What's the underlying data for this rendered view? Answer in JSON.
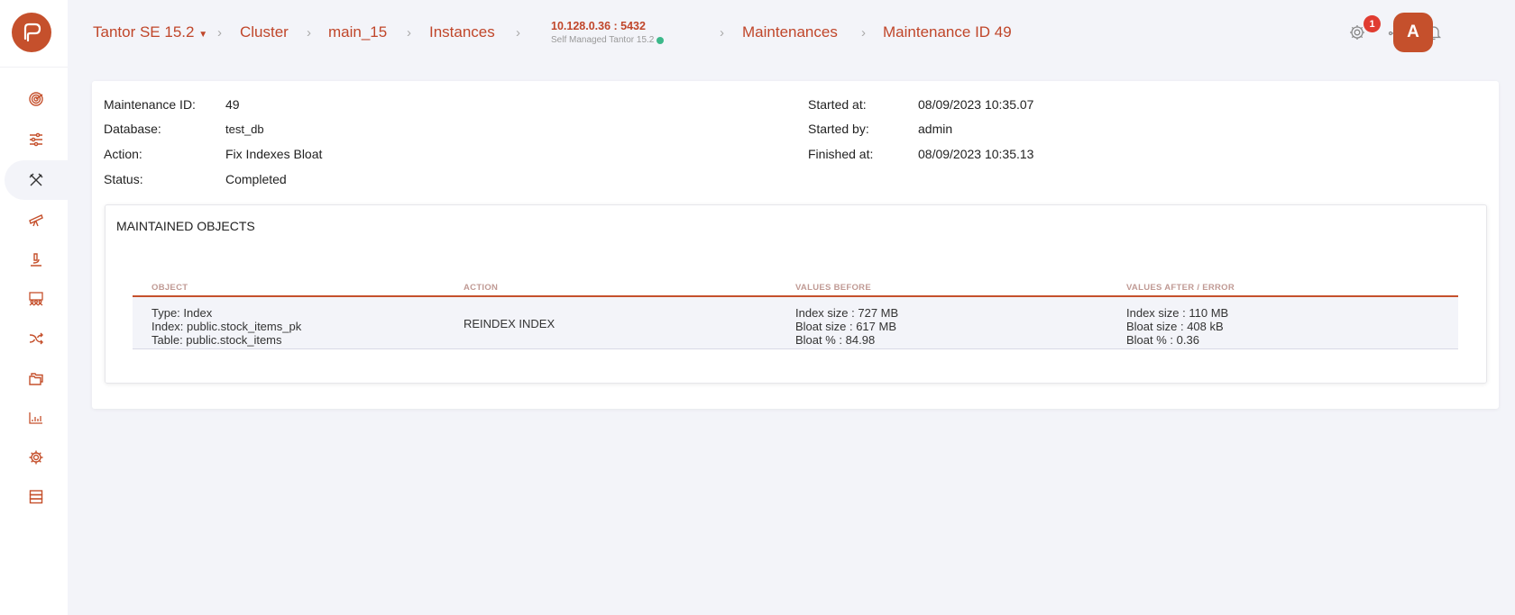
{
  "colors": {
    "accent": "#c5502c",
    "background": "#f3f4f9",
    "badge": "#e03c31",
    "status_ok": "#3cb88a"
  },
  "sidebar": {
    "items": [
      {
        "icon": "radar-icon",
        "active": false
      },
      {
        "icon": "sliders-icon",
        "active": false
      },
      {
        "icon": "tools-icon",
        "active": true
      },
      {
        "icon": "telescope-icon",
        "active": false
      },
      {
        "icon": "microscope-icon",
        "active": false
      },
      {
        "icon": "presentation-users-icon",
        "active": false
      },
      {
        "icon": "shuffle-icon",
        "active": false
      },
      {
        "icon": "folders-icon",
        "active": false
      },
      {
        "icon": "bar-chart-icon",
        "active": false
      },
      {
        "icon": "gear-icon",
        "active": false
      },
      {
        "icon": "server-icon",
        "active": false
      }
    ]
  },
  "breadcrumb": {
    "product": "Tantor SE 15.2",
    "cluster": "Cluster",
    "cluster_name": "main_15",
    "instances": "Instances",
    "instance_address": "10.128.0.36 : 5432",
    "instance_type": "Self Managed Tantor 15.2",
    "maintenances": "Maintenances",
    "current": "Maintenance ID 49"
  },
  "header": {
    "notifications_count": "1",
    "avatar_initial": "A"
  },
  "details": {
    "left": [
      {
        "label": "Maintenance ID:",
        "value": "49"
      },
      {
        "label": "Database:",
        "value": "test_db"
      },
      {
        "label": "Action:",
        "value": "Fix Indexes Bloat"
      },
      {
        "label": "Status:",
        "value": "Completed"
      }
    ],
    "right": [
      {
        "label": "Started at:",
        "value": "08/09/2023 10:35.07"
      },
      {
        "label": "Started by:",
        "value": "admin"
      },
      {
        "label": "Finished at:",
        "value": "08/09/2023 10:35.13"
      }
    ]
  },
  "maintained": {
    "title": "MAINTAINED OBJECTS",
    "columns": [
      "OBJECT",
      "ACTION",
      "VALUES BEFORE",
      "VALUES AFTER / ERROR"
    ],
    "rows": [
      {
        "object": [
          "Type: Index",
          "Index: public.stock_items_pk",
          "Table: public.stock_items"
        ],
        "action": "REINDEX INDEX",
        "before": [
          "Index size : 727 MB",
          "Bloat size : 617 MB",
          "Bloat % : 84.98"
        ],
        "after": [
          "Index size : 110 MB",
          "Bloat size : 408 kB",
          "Bloat % : 0.36"
        ]
      }
    ]
  }
}
